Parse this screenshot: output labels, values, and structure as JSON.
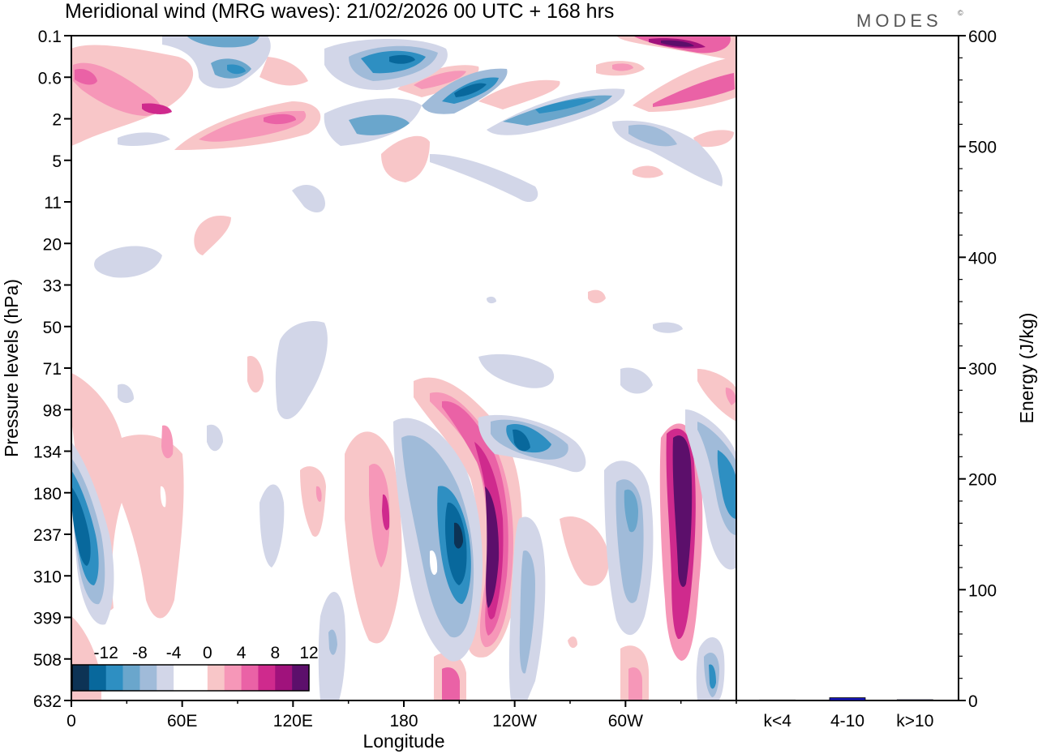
{
  "chart_data": [
    {
      "type": "heatmap",
      "title": "Meridional wind (MRG waves):  21/02/2026  00 UTC  + 168 hrs",
      "brand": "MODES",
      "brand_mark": "©",
      "xlabel": "Longitude",
      "ylabel": "Pressure levels (hPa)",
      "x_ticks": [
        "0",
        "60E",
        "120E",
        "180",
        "120W",
        "60W"
      ],
      "x_tick_values": [
        0,
        60,
        120,
        180,
        240,
        300
      ],
      "xlim": [
        0,
        360
      ],
      "y_ticks": [
        "0.1",
        "0.6",
        "2",
        "5",
        "11",
        "20",
        "33",
        "50",
        "71",
        "98",
        "134",
        "180",
        "237",
        "310",
        "399",
        "508",
        "632"
      ],
      "colorbar": {
        "labels": [
          "-12",
          "-8",
          "-4",
          "0",
          "4",
          "8",
          "12"
        ],
        "colors": [
          "#0d3355",
          "#08689c",
          "#2e8fc2",
          "#6aa6cc",
          "#a0bbd9",
          "#d2d6e8",
          "#ffffff",
          "#ffffff",
          "#f8c6c8",
          "#f697b8",
          "#ea62a6",
          "#cf2a8d",
          "#a0127c",
          "#5c0f6b"
        ]
      },
      "contours": [
        {
          "level": 12,
          "cx": 22,
          "cy": 0.88,
          "rx": 4,
          "ry": 0.08,
          "rot": 0
        },
        {
          "level": 8,
          "cx": 22,
          "cy": 0.86,
          "rx": 6,
          "ry": 0.14,
          "rot": 0
        },
        {
          "level": 4,
          "cx": 22,
          "cy": 0.84,
          "rx": 8,
          "ry": 0.2,
          "rot": 0
        },
        {
          "level": -16,
          "cx": 210,
          "cy": 0.77,
          "rx": 3,
          "ry": 0.05,
          "rot": 0
        },
        {
          "level": -12,
          "cx": 210,
          "cy": 0.77,
          "rx": 6,
          "ry": 0.1,
          "rot": 0
        },
        {
          "level": -8,
          "cx": 209,
          "cy": 0.78,
          "rx": 9,
          "ry": 0.16,
          "rot": 0
        }
      ]
    },
    {
      "type": "bar",
      "ylabel": "Energy (J/kg)",
      "categories": [
        "k<4",
        "4-10",
        "k>10"
      ],
      "values": [
        0.5,
        2.5,
        0.7
      ],
      "ylim": [
        0,
        600
      ],
      "y_ticks": [
        "0",
        "100",
        "200",
        "300",
        "400",
        "500",
        "600"
      ],
      "y_tick_values": [
        0,
        100,
        200,
        300,
        400,
        500,
        600
      ],
      "bar_color": "#1414b4"
    }
  ]
}
